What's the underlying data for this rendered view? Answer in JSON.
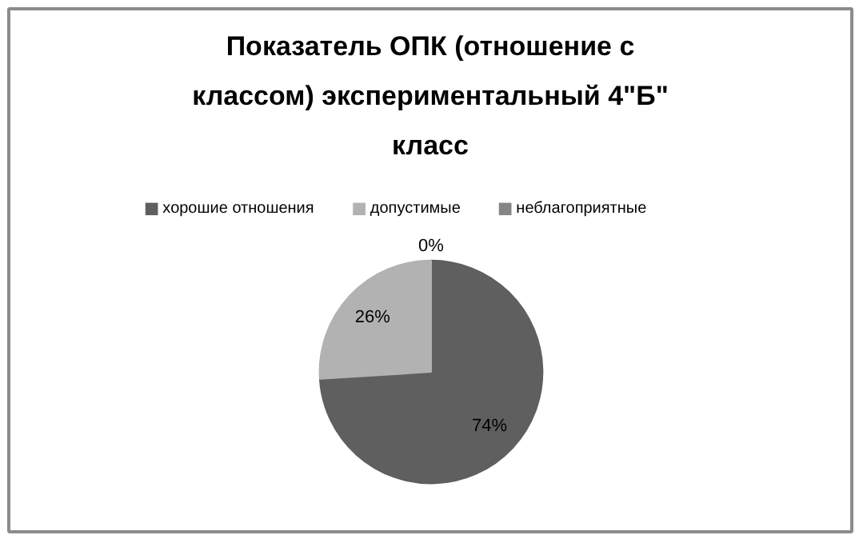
{
  "chart_data": {
    "type": "pie",
    "title": "Показатель ОПК (отношение с классом) экспериментальный 4\"Б\" класс",
    "categories": [
      "хорошие отношения",
      "допустимые",
      "неблагоприятные"
    ],
    "values": [
      74,
      26,
      0
    ],
    "colors": [
      "#5f5f5f",
      "#b2b2b2",
      "#858585"
    ],
    "value_labels": [
      "74%",
      "26%",
      "0%"
    ],
    "legend": "top"
  }
}
